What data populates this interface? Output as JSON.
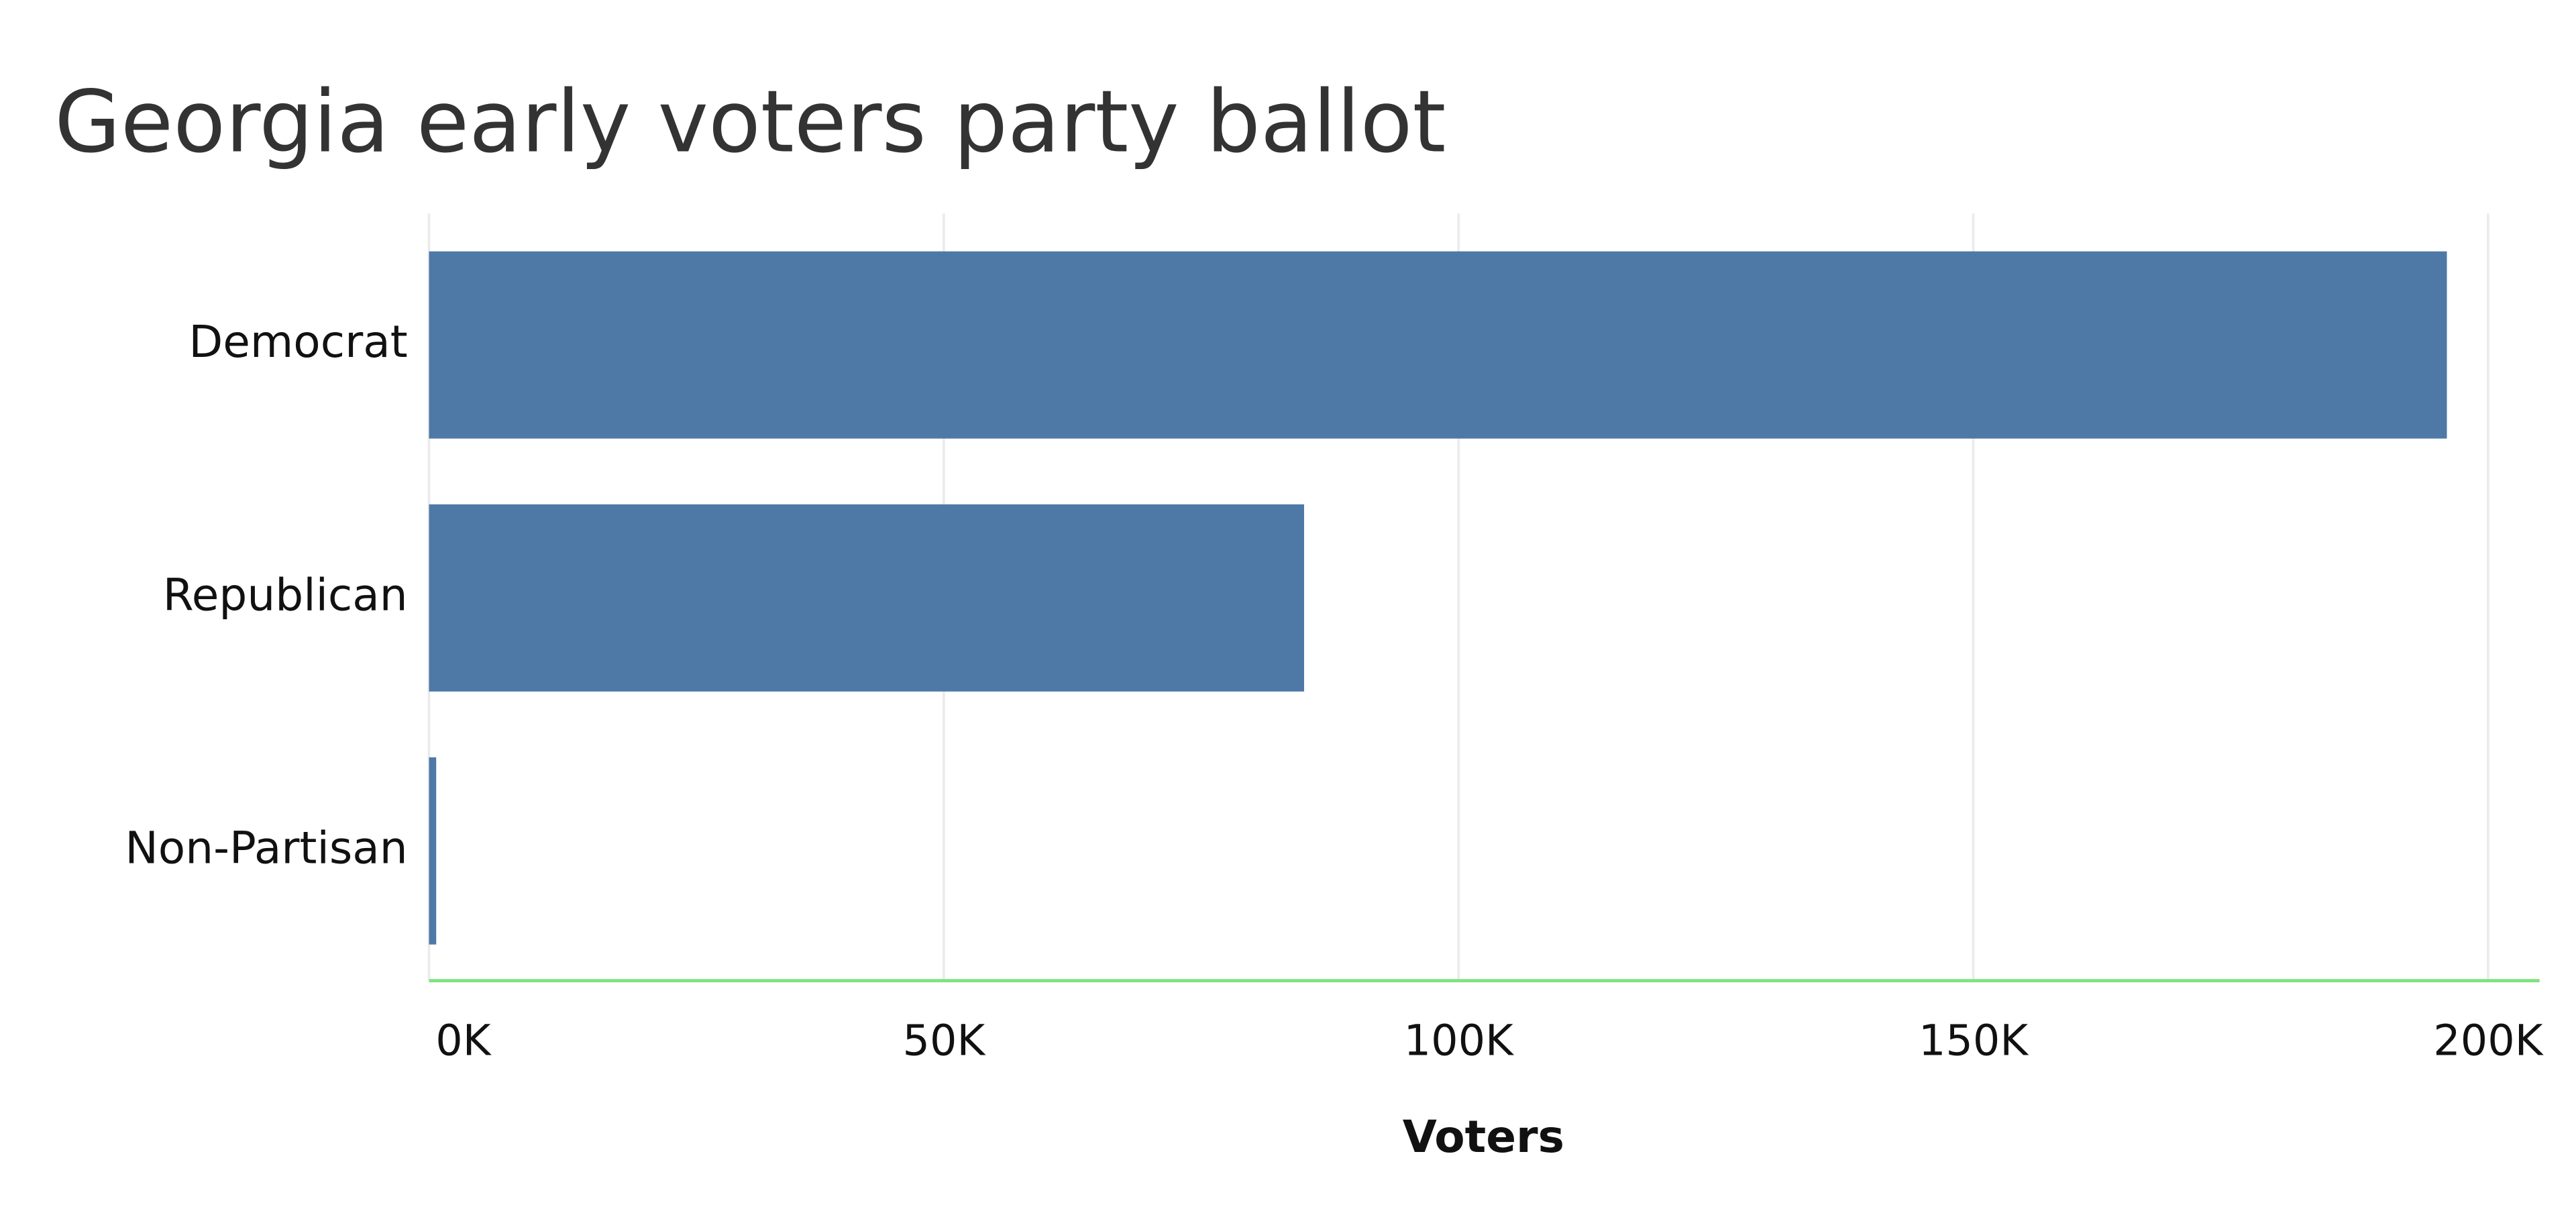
{
  "chart_data": {
    "type": "barh",
    "title": "Georgia early voters party ballot",
    "categories": [
      "Democrat",
      "Republican",
      "Non-Partisan"
    ],
    "values": [
      196000,
      85000,
      700
    ],
    "color": "#4e79a7",
    "x_label": "Voters",
    "xlim": [
      0,
      205000
    ],
    "xticks": [
      {
        "value": 0,
        "label": "0K"
      },
      {
        "value": 50000,
        "label": "50K"
      },
      {
        "value": 100000,
        "label": "100K"
      },
      {
        "value": 150000,
        "label": "150K"
      },
      {
        "value": 200000,
        "label": "200K"
      }
    ],
    "grid": true
  }
}
